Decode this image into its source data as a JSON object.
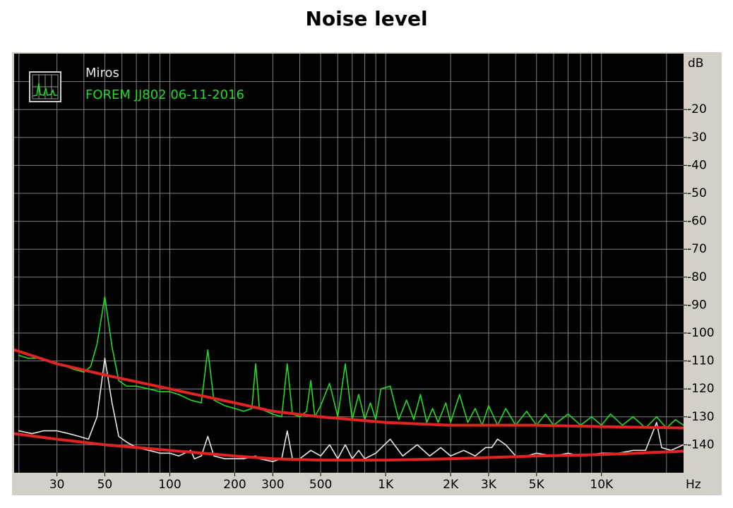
{
  "chart_data": {
    "type": "line",
    "title": "Noise level",
    "y_axis_label": "dB",
    "x_axis_label": "Hz",
    "xscale": "log",
    "xlim": [
      19,
      24000
    ],
    "ylim": [
      -150,
      0
    ],
    "grid": true,
    "xticks": [
      30,
      50,
      100,
      200,
      300,
      500,
      {
        "value": 1000,
        "label": "1K"
      },
      {
        "value": 2000,
        "label": "2K"
      },
      {
        "value": 3000,
        "label": "3K"
      },
      {
        "value": 5000,
        "label": "5K"
      },
      {
        "value": 10000,
        "label": "10K"
      }
    ],
    "yticks": [
      -20,
      -30,
      -40,
      -50,
      -60,
      -70,
      -80,
      -90,
      -100,
      -110,
      -120,
      -130,
      -140
    ],
    "xgrid": [
      20,
      30,
      40,
      50,
      60,
      70,
      80,
      90,
      100,
      200,
      300,
      400,
      500,
      600,
      700,
      800,
      900,
      1000,
      2000,
      3000,
      4000,
      5000,
      6000,
      7000,
      8000,
      9000,
      10000,
      20000
    ],
    "ygrid": [
      -10,
      -20,
      -30,
      -40,
      -50,
      -60,
      -70,
      -80,
      -90,
      -100,
      -110,
      -120,
      -130,
      -140
    ],
    "series": [
      {
        "name": "Miros",
        "color": "#e8e8e8",
        "x": [
          20,
          23,
          26,
          30,
          34,
          38,
          42,
          46,
          50,
          54,
          58,
          63,
          70,
          80,
          90,
          100,
          110,
          125,
          130,
          140,
          150,
          160,
          180,
          200,
          220,
          250,
          260,
          300,
          330,
          350,
          370,
          400,
          450,
          500,
          550,
          600,
          650,
          700,
          750,
          800,
          900,
          1050,
          1200,
          1400,
          1600,
          1800,
          2000,
          2300,
          2600,
          2900,
          3100,
          3300,
          3600,
          4000,
          4500,
          5000,
          6000,
          7000,
          8000,
          10000,
          12000,
          14000,
          16000,
          18000,
          19000,
          21000,
          24000
        ],
        "values": [
          -135,
          -136,
          -135,
          -135,
          -136,
          -137,
          -138,
          -130,
          -109,
          -125,
          -137,
          -139,
          -141,
          -142,
          -143,
          -143,
          -144,
          -142,
          -145,
          -144,
          -137,
          -144,
          -145,
          -145,
          -145,
          -144,
          -145,
          -146,
          -145,
          -135,
          -145,
          -145,
          -142,
          -144,
          -140,
          -145,
          -140,
          -145,
          -142,
          -145,
          -143,
          -138,
          -144,
          -140,
          -144,
          -141,
          -144,
          -142,
          -144,
          -141,
          -141,
          -138,
          -140,
          -144,
          -144,
          -143,
          -144,
          -143,
          -144,
          -143,
          -143,
          -142,
          -142,
          -132,
          -141,
          -142,
          -140
        ]
      },
      {
        "name": "FOREM JJ802 06-11-2016",
        "color": "#22dd22",
        "x": [
          20,
          22,
          25,
          28,
          30,
          33,
          36,
          40,
          43,
          46,
          50,
          54,
          58,
          63,
          70,
          80,
          90,
          100,
          110,
          125,
          140,
          150,
          160,
          180,
          200,
          220,
          240,
          250,
          260,
          300,
          330,
          350,
          370,
          400,
          430,
          450,
          470,
          500,
          550,
          600,
          650,
          700,
          750,
          800,
          850,
          900,
          950,
          1050,
          1150,
          1250,
          1350,
          1450,
          1550,
          1650,
          1750,
          1900,
          2000,
          2200,
          2400,
          2600,
          2800,
          3000,
          3300,
          3600,
          4000,
          4500,
          5000,
          5500,
          6000,
          7000,
          8000,
          9000,
          10000,
          11000,
          12500,
          14000,
          16000,
          18000,
          20000,
          22000,
          24000
        ],
        "values": [
          -108,
          -109,
          -109,
          -110,
          -111,
          -112,
          -113,
          -114,
          -112,
          -104,
          -87,
          -105,
          -117,
          -119,
          -119,
          -120,
          -121,
          -121,
          -122,
          -124,
          -125,
          -106,
          -124,
          -126,
          -127,
          -128,
          -127,
          -111,
          -127,
          -129,
          -130,
          -111,
          -129,
          -130,
          -128,
          -117,
          -130,
          -126,
          -118,
          -130,
          -111,
          -131,
          -122,
          -131,
          -125,
          -131,
          -120,
          -119,
          -131,
          -124,
          -131,
          -122,
          -132,
          -127,
          -132,
          -125,
          -132,
          -122,
          -132,
          -127,
          -133,
          -126,
          -133,
          -127,
          -133,
          -128,
          -133,
          -129,
          -133,
          -129,
          -133,
          -130,
          -133,
          -129,
          -133,
          -130,
          -134,
          -130,
          -134,
          -131,
          -133
        ]
      },
      {
        "color": "#e02424",
        "x": [
          19,
          30,
          50,
          100,
          200,
          300,
          500,
          1000,
          2000,
          5000,
          10000,
          24000
        ],
        "values": [
          -106,
          -111,
          -115,
          -120,
          -125,
          -128,
          -130,
          -132,
          -133,
          -133,
          -133.5,
          -134
        ]
      },
      {
        "color": "#e02424",
        "x": [
          19,
          30,
          50,
          100,
          200,
          300,
          500,
          1000,
          2000,
          5000,
          10000,
          24000
        ],
        "values": [
          -136,
          -138,
          -140,
          -142,
          -144,
          -145,
          -145.5,
          -145.5,
          -145,
          -144,
          -143.5,
          -142.3
        ]
      }
    ]
  }
}
